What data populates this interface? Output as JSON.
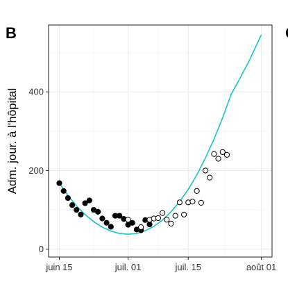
{
  "panel": {
    "label": "B",
    "next_panel_label": "C"
  },
  "chart_data": {
    "type": "scatter",
    "title": "",
    "xlabel": "",
    "ylabel": "Adm. jour. à l'hôpital",
    "x_ticks": [
      {
        "day": 0,
        "label": "juin 15"
      },
      {
        "day": 16,
        "label": "juil. 01"
      },
      {
        "day": 30,
        "label": "juil. 15"
      },
      {
        "day": 47,
        "label": "août 01"
      }
    ],
    "y_ticks": [
      0,
      200,
      400
    ],
    "xlim": [
      -2.5,
      49.5
    ],
    "ylim": [
      -20,
      570
    ],
    "grid": true,
    "series": [
      {
        "style": "filled-points",
        "color": "#000000",
        "points": [
          [
            0,
            168
          ],
          [
            1,
            148
          ],
          [
            2,
            130
          ],
          [
            3,
            112
          ],
          [
            4,
            100
          ],
          [
            5,
            88
          ],
          [
            6,
            117
          ],
          [
            7,
            124
          ],
          [
            8,
            100
          ],
          [
            9,
            95
          ],
          [
            10,
            78
          ],
          [
            11,
            67
          ],
          [
            12,
            57
          ],
          [
            13,
            85
          ],
          [
            14,
            85
          ],
          [
            15,
            77
          ],
          [
            16,
            62
          ],
          [
            17,
            67
          ],
          [
            18,
            50
          ],
          [
            19,
            48
          ],
          [
            20,
            74
          ],
          [
            21,
            63
          ]
        ]
      },
      {
        "style": "open-points",
        "color": "#000000",
        "points": [
          [
            16,
            75
          ],
          [
            19,
            56
          ],
          [
            21,
            75
          ],
          [
            22,
            78
          ],
          [
            23,
            79
          ],
          [
            24,
            92
          ],
          [
            25,
            75
          ],
          [
            26,
            65
          ],
          [
            27,
            85
          ],
          [
            28,
            119
          ],
          [
            29,
            88
          ],
          [
            30,
            119
          ],
          [
            31,
            121
          ],
          [
            32,
            148
          ],
          [
            33,
            118
          ],
          [
            34,
            200
          ],
          [
            35,
            182
          ],
          [
            36,
            242
          ],
          [
            37,
            230
          ],
          [
            38,
            247
          ],
          [
            39,
            240
          ]
        ]
      },
      {
        "style": "line",
        "color": "#17c3c9",
        "points": [
          [
            0,
            168
          ],
          [
            2,
            137
          ],
          [
            4,
            110
          ],
          [
            6,
            88
          ],
          [
            8,
            70
          ],
          [
            10,
            56
          ],
          [
            12,
            46
          ],
          [
            14,
            40
          ],
          [
            16,
            38
          ],
          [
            18,
            40
          ],
          [
            20,
            47
          ],
          [
            22,
            58
          ],
          [
            24,
            74
          ],
          [
            26,
            95
          ],
          [
            28,
            121
          ],
          [
            30,
            152
          ],
          [
            32,
            189
          ],
          [
            34,
            232
          ],
          [
            36,
            280
          ],
          [
            38,
            334
          ],
          [
            40,
            394
          ],
          [
            42,
            434
          ],
          [
            44,
            475
          ],
          [
            47,
            545
          ]
        ]
      }
    ]
  }
}
